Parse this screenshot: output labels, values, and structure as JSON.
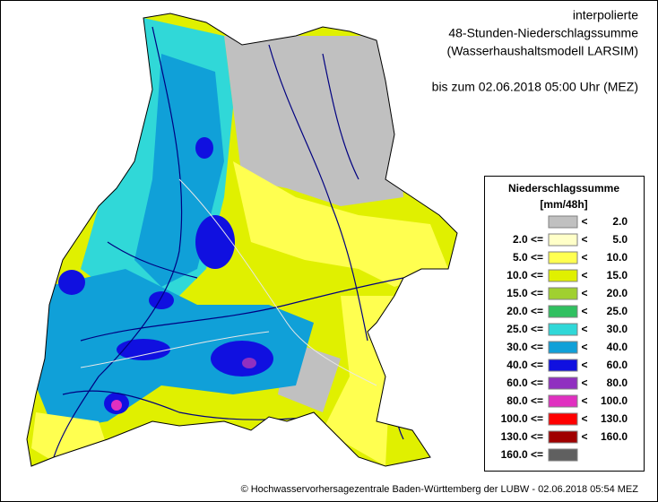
{
  "header": {
    "lines": [
      "interpolierte",
      "48-Stunden-Niederschlagssumme",
      "(Wasserhaushaltsmodell LARSIM)",
      "bis zum 02.06.2018 05:00 Uhr (MEZ)"
    ]
  },
  "legend": {
    "title": "Niederschlagssumme",
    "unit": "[mm/48h]",
    "items": [
      {
        "op": "<",
        "right": "2.0",
        "color": "#c0c0c0"
      },
      {
        "left": "2.0 <=",
        "op": "<",
        "right": "5.0",
        "color": "#ffffc8"
      },
      {
        "left": "5.0 <=",
        "op": "<",
        "right": "10.0",
        "color": "#ffff50"
      },
      {
        "left": "10.0 <=",
        "op": "<",
        "right": "15.0",
        "color": "#e0f000"
      },
      {
        "left": "15.0 <=",
        "op": "<",
        "right": "20.0",
        "color": "#a0d030"
      },
      {
        "left": "20.0 <=",
        "op": "<",
        "right": "25.0",
        "color": "#30c060"
      },
      {
        "left": "25.0 <=",
        "op": "<",
        "right": "30.0",
        "color": "#30d8d8"
      },
      {
        "left": "30.0 <=",
        "op": "<",
        "right": "40.0",
        "color": "#10a0d8"
      },
      {
        "left": "40.0 <=",
        "op": "<",
        "right": "60.0",
        "color": "#1010e0"
      },
      {
        "left": "60.0 <=",
        "op": "<",
        "right": "80.0",
        "color": "#9030c0"
      },
      {
        "left": "80.0 <=",
        "op": "<",
        "right": "100.0",
        "color": "#e030c0"
      },
      {
        "left": "100.0 <=",
        "op": "<",
        "right": "130.0",
        "color": "#ff0000"
      },
      {
        "left": "130.0 <=",
        "op": "<",
        "right": "160.0",
        "color": "#a00000"
      },
      {
        "left": "160.0 <=",
        "color": "#606060"
      }
    ]
  },
  "footer": "© Hochwasservorhersagezentrale Baden-Württemberg der LUBW - 02.06.2018 05:54 MEZ"
}
